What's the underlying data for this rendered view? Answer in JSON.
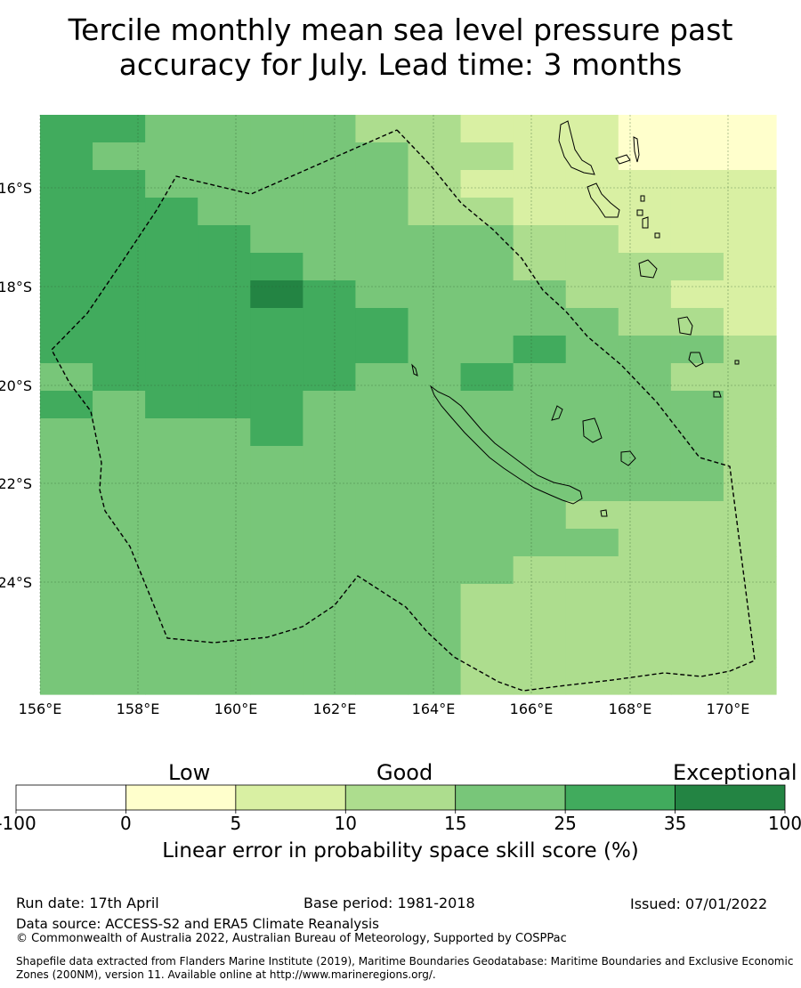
{
  "title_line1": "Tercile monthly mean sea level pressure past",
  "title_line2": "accuracy for July. Lead time: 3 months",
  "map": {
    "lon_ticks": [
      "156°E",
      "158°E",
      "160°E",
      "162°E",
      "164°E",
      "166°E",
      "168°E",
      "170°E"
    ],
    "lat_ticks": [
      "16°S",
      "18°S",
      "20°S",
      "22°S",
      "24°S"
    ],
    "grid_rows": [
      "55444433222111",
      "54444443322111",
      "55444443222222",
      "55544443322222",
      "55554444433222",
      "55555444433332",
      "55556544443322",
      "55555554444332",
      "55555554454443",
      "45555544544433",
      "54555444444443",
      "44445444444443",
      "44444444444443",
      "44444444444443",
      "44444444443333",
      "44444444444333",
      "44444444433333",
      "44444444333333",
      "44444444333333",
      "44444444333333",
      "44444444333333"
    ],
    "eez_boundary": "Maritime boundary (EEZ)",
    "colors": {
      "0": "#ffffff",
      "1": "#ffffcc",
      "2": "#d9f0a3",
      "3": "#addd8e",
      "4": "#78c679",
      "5": "#41ab5d",
      "6": "#238443"
    }
  },
  "legend": {
    "categories": [
      "Low",
      "Good",
      "Exceptional"
    ],
    "bins": [
      {
        "from": -100,
        "to": 0,
        "color": "#ffffff"
      },
      {
        "from": 0,
        "to": 5,
        "color": "#ffffcc"
      },
      {
        "from": 5,
        "to": 10,
        "color": "#d9f0a3"
      },
      {
        "from": 10,
        "to": 15,
        "color": "#addd8e"
      },
      {
        "from": 15,
        "to": 25,
        "color": "#78c679"
      },
      {
        "from": 25,
        "to": 35,
        "color": "#41ab5d"
      },
      {
        "from": 35,
        "to": 100,
        "color": "#238443"
      }
    ],
    "tick_labels": [
      "-100",
      "0",
      "5",
      "10",
      "15",
      "25",
      "35",
      "100"
    ],
    "title": "Linear error in probability space skill score (%)"
  },
  "footer": {
    "run_date": "Run date: 17th April",
    "base_period": "Base period: 1981-2018",
    "issued": "Issued: 07/01/2022",
    "data_source": "Data source: ACCESS-S2 and ERA5 Climate Reanalysis",
    "copyright": "© Commonwealth of Australia 2022, Australian Bureau of Meteorology, Supported by COSPPac",
    "shapefile_note": "Shapefile data extracted from Flanders Marine Institute (2019), Maritime Boundaries Geodatabase: Maritime Boundaries and Exclusive Economic Zones (200NM), version 11. Available online at http://www.marineregions.org/."
  }
}
